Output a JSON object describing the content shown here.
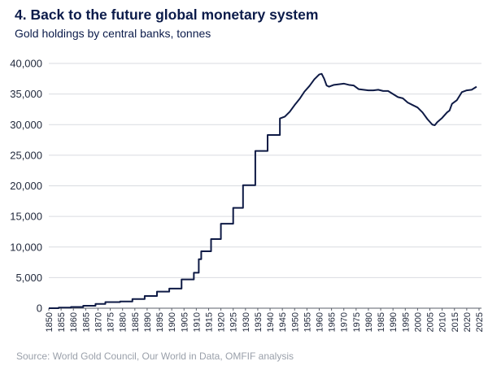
{
  "title": "4. Back to the future global monetary system",
  "subtitle": "Gold holdings by central banks, tonnes",
  "source": "Source: World Gold Council, Our World in Data, OMFIF analysis",
  "colors": {
    "title": "#0b1b4a",
    "line": "#0e1a45",
    "source": "#9aa0aa"
  },
  "chart_data": {
    "type": "line",
    "title": "4. Back to the future global monetary system",
    "subtitle": "Gold holdings by central banks, tonnes",
    "xlabel": "",
    "ylabel": "",
    "xlim": [
      1850,
      2026
    ],
    "ylim": [
      0,
      40000
    ],
    "grid": true,
    "legend": "none",
    "y_ticks": [
      0,
      5000,
      10000,
      15000,
      20000,
      25000,
      30000,
      35000,
      40000
    ],
    "y_tick_labels": [
      "0",
      "5,000",
      "10,000",
      "15,000",
      "20,000",
      "25,000",
      "30,000",
      "35,000",
      "40,000"
    ],
    "x_ticks": [
      1850,
      1855,
      1860,
      1865,
      1870,
      1875,
      1880,
      1885,
      1890,
      1895,
      1900,
      1905,
      1910,
      1915,
      1920,
      1925,
      1930,
      1935,
      1940,
      1945,
      1950,
      1955,
      1960,
      1965,
      1970,
      1975,
      1980,
      1985,
      1990,
      1995,
      2000,
      2005,
      2010,
      2015,
      2020,
      2025
    ],
    "x_tick_labels": [
      "1850",
      "1855",
      "1860",
      "1865",
      "1870",
      "1875",
      "1880",
      "1885",
      "1890",
      "1895",
      "1900",
      "1905",
      "1910",
      "1915",
      "1920",
      "1925",
      "1930",
      "1935",
      "1940",
      "1945",
      "1950",
      "1955",
      "1960",
      "1965",
      "1970",
      "1975",
      "1980",
      "1985",
      "1990",
      "1995",
      "2000",
      "2005",
      "2010",
      "2015",
      "2020",
      "2025"
    ],
    "series": [
      {
        "points": [
          [
            1850,
            0
          ],
          [
            1854,
            0
          ],
          [
            1854,
            100
          ],
          [
            1859,
            100
          ],
          [
            1859,
            200
          ],
          [
            1864,
            200
          ],
          [
            1864,
            400
          ],
          [
            1869,
            400
          ],
          [
            1869,
            700
          ],
          [
            1873,
            700
          ],
          [
            1873,
            1000
          ],
          [
            1879,
            1000
          ],
          [
            1879,
            1100
          ],
          [
            1884,
            1100
          ],
          [
            1884,
            1500
          ],
          [
            1889,
            1500
          ],
          [
            1889,
            2000
          ],
          [
            1894,
            2000
          ],
          [
            1894,
            2700
          ],
          [
            1899,
            2700
          ],
          [
            1899,
            3200
          ],
          [
            1904,
            3200
          ],
          [
            1904,
            4700
          ],
          [
            1909,
            4700
          ],
          [
            1909,
            5800
          ],
          [
            1911,
            5800
          ],
          [
            1911,
            8000
          ],
          [
            1912,
            8000
          ],
          [
            1912,
            9300
          ],
          [
            1916,
            9300
          ],
          [
            1916,
            11300
          ],
          [
            1920,
            11300
          ],
          [
            1920,
            13800
          ],
          [
            1925,
            13800
          ],
          [
            1925,
            16400
          ],
          [
            1929,
            16400
          ],
          [
            1929,
            20100
          ],
          [
            1934,
            20100
          ],
          [
            1934,
            25700
          ],
          [
            1939,
            25700
          ],
          [
            1939,
            28300
          ],
          [
            1944,
            28300
          ],
          [
            1944,
            31000
          ],
          [
            1946,
            31300
          ],
          [
            1948,
            32100
          ],
          [
            1950,
            33200
          ],
          [
            1952,
            34200
          ],
          [
            1954,
            35400
          ],
          [
            1956,
            36300
          ],
          [
            1958,
            37400
          ],
          [
            1960,
            38200
          ],
          [
            1961,
            38300
          ],
          [
            1962,
            37500
          ],
          [
            1963,
            36400
          ],
          [
            1964,
            36200
          ],
          [
            1966,
            36500
          ],
          [
            1968,
            36600
          ],
          [
            1970,
            36700
          ],
          [
            1972,
            36500
          ],
          [
            1974,
            36400
          ],
          [
            1976,
            35800
          ],
          [
            1978,
            35700
          ],
          [
            1980,
            35600
          ],
          [
            1982,
            35600
          ],
          [
            1984,
            35700
          ],
          [
            1986,
            35500
          ],
          [
            1988,
            35500
          ],
          [
            1990,
            35000
          ],
          [
            1992,
            34500
          ],
          [
            1994,
            34300
          ],
          [
            1996,
            33600
          ],
          [
            1998,
            33200
          ],
          [
            2000,
            32800
          ],
          [
            2002,
            32000
          ],
          [
            2004,
            30900
          ],
          [
            2006,
            30000
          ],
          [
            2007,
            29900
          ],
          [
            2008,
            30400
          ],
          [
            2010,
            31100
          ],
          [
            2012,
            32000
          ],
          [
            2013,
            32300
          ],
          [
            2014,
            33400
          ],
          [
            2016,
            34000
          ],
          [
            2018,
            35300
          ],
          [
            2020,
            35600
          ],
          [
            2022,
            35700
          ],
          [
            2024,
            36200
          ]
        ]
      }
    ]
  }
}
